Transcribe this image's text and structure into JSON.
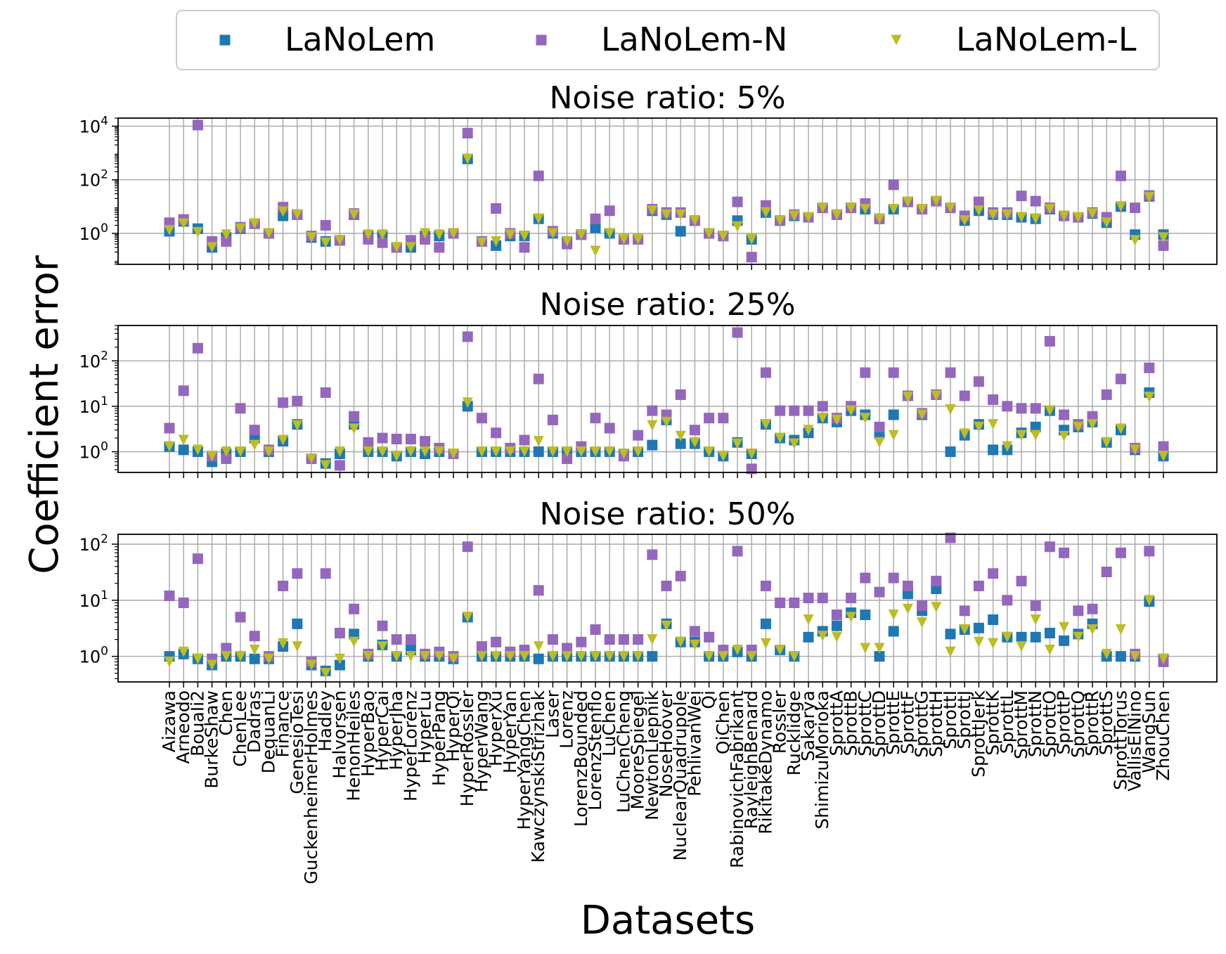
{
  "chart_data": {
    "type": "scatter",
    "xlabel": "Datasets",
    "ylabel": "Coefficient error",
    "legend": {
      "placement": "top-center",
      "entries": [
        "LaNoLem",
        "LaNoLem-N",
        "LaNoLem-L"
      ]
    },
    "grid": true,
    "yscale": "log",
    "series_styles": [
      {
        "name": "LaNoLem",
        "color": "#1f77b4",
        "marker": "square"
      },
      {
        "name": "LaNoLem-N",
        "color": "#9467bd",
        "marker": "square"
      },
      {
        "name": "LaNoLem-L",
        "color": "#bcbd22",
        "marker": "triangle-down"
      }
    ],
    "categories": [
      "Aizawa",
      "Arneodo",
      "BouaIi2",
      "BurkeShaw",
      "Chen",
      "ChenLee",
      "Dadras",
      "DequanLi",
      "Finance",
      "GenesioTesi",
      "GuckenheimerHolmes",
      "Hadley",
      "Halvorsen",
      "HenonHeiles",
      "HyperBao",
      "HyperCai",
      "HyperJha",
      "HyperLorenz",
      "HyperLu",
      "HyperPang",
      "HyperQi",
      "HyperRossler",
      "HyperWang",
      "HyperXu",
      "HyperYan",
      "HyperYangChen",
      "KawczynskiStrizhak",
      "Laser",
      "Lorenz",
      "LorenzBounded",
      "LorenzStenflo",
      "LuChen",
      "LuChenCheng",
      "MooreSpiegel",
      "NewtonLiepnik",
      "NoseHoover",
      "NuclearQuadrupole",
      "PehlivanWei",
      "Qi",
      "QiChen",
      "RabinovichFabrikant",
      "RayleighBenard",
      "RikitakeDynamo",
      "Rossler",
      "Rucklidge",
      "Sakarya",
      "ShimizuMorioka",
      "SprottA",
      "SprottB",
      "SprottC",
      "SprottD",
      "SprottE",
      "SprottF",
      "SprottG",
      "SprottH",
      "SprottI",
      "SprottJ",
      "SprottJerk",
      "SprottK",
      "SprottL",
      "SprottM",
      "SprottN",
      "SprottO",
      "SprottP",
      "SprottQ",
      "SprottR",
      "SprottS",
      "SprottTorus",
      "VallisElNino",
      "WangSun",
      "ZhouChen"
    ],
    "panels": [
      {
        "title": "Noise ratio: 5%",
        "ylim": [
          0.07,
          20000
        ],
        "yticks": [
          1,
          100,
          10000
        ],
        "ytick_labels": [
          [
            "10",
            "0"
          ],
          [
            "10",
            "2"
          ],
          [
            "10",
            "4"
          ]
        ],
        "series": [
          {
            "name": "LaNoLem",
            "values": [
              1.2,
              2.8,
              1.5,
              0.3,
              0.7,
              1.5,
              2.3,
              1.0,
              4.5,
              5,
              0.7,
              0.5,
              0.55,
              5,
              0.8,
              0.8,
              0.3,
              0.3,
              0.8,
              0.8,
              1.0,
              600,
              0.5,
              0.35,
              0.8,
              0.8,
              3.5,
              1.0,
              0.5,
              0.9,
              1.6,
              1.0,
              0.6,
              0.6,
              7,
              5,
              1.2,
              3,
              1.0,
              0.8,
              3,
              0.6,
              6,
              3,
              4.5,
              4,
              9,
              5,
              9,
              8,
              3.5,
              8,
              15,
              8,
              16,
              9,
              3,
              7,
              5,
              5,
              4,
              3.5,
              8,
              4.5,
              4,
              5.5,
              2.5,
              10,
              0.9,
              24,
              0.9
            ]
          },
          {
            "name": "LaNoLem-N",
            "values": [
              2.5,
              3.3,
              11000,
              0.5,
              0.5,
              1.7,
              2.3,
              1.0,
              9.5,
              5,
              0.8,
              2.0,
              0.55,
              5.5,
              0.6,
              0.45,
              0.3,
              0.55,
              0.6,
              0.3,
              1.0,
              5500,
              0.5,
              8.5,
              1.0,
              0.3,
              140,
              1.2,
              0.4,
              0.9,
              3.5,
              7,
              0.6,
              0.6,
              8,
              6,
              6,
              3,
              1.0,
              0.8,
              15,
              0.13,
              11,
              3,
              5,
              4,
              9,
              5,
              9,
              13,
              3.5,
              65,
              15,
              8,
              16,
              9,
              4.5,
              15,
              6,
              6,
              25,
              16,
              9,
              4.5,
              4,
              6,
              4,
              140,
              9,
              26,
              0.35
            ]
          },
          {
            "name": "LaNoLem-L",
            "values": [
              1.3,
              2.3,
              1.1,
              0.3,
              0.9,
              1.5,
              2.3,
              1.0,
              6.5,
              5,
              0.7,
              0.45,
              0.55,
              5,
              0.9,
              0.9,
              0.3,
              0.3,
              1.0,
              0.9,
              1.0,
              600,
              0.45,
              0.5,
              0.9,
              0.8,
              3.5,
              1.0,
              0.5,
              0.9,
              0.22,
              1.0,
              0.6,
              0.6,
              7,
              5,
              5,
              3,
              1.0,
              0.8,
              1.8,
              0.6,
              6,
              3,
              4.5,
              4,
              9,
              5,
              9,
              8,
              3.5,
              8,
              15,
              8,
              16,
              9,
              3,
              7,
              5,
              5,
              4,
              3.5,
              8,
              4.5,
              4,
              5.5,
              2.5,
              10,
              0.55,
              22,
              0.7
            ]
          }
        ]
      },
      {
        "title": "Noise ratio: 25%",
        "ylim": [
          0.35,
          600
        ],
        "yticks": [
          1,
          10,
          100
        ],
        "ytick_labels": [
          [
            "10",
            "0"
          ],
          [
            "10",
            "1"
          ],
          [
            "10",
            "2"
          ]
        ],
        "series": [
          {
            "name": "LaNoLem",
            "values": [
              1.3,
              1.1,
              1.0,
              0.6,
              0.9,
              1.0,
              2.0,
              1.0,
              1.7,
              4,
              0.7,
              0.55,
              0.9,
              4,
              1.0,
              1.0,
              0.8,
              1.0,
              0.9,
              1.0,
              0.9,
              10,
              1.0,
              1.0,
              1.0,
              1.0,
              1.0,
              1.0,
              1.0,
              1.0,
              1.0,
              1.0,
              0.9,
              1.0,
              1.4,
              5,
              1.5,
              1.5,
              1.0,
              0.8,
              1.6,
              0.9,
              4,
              2.0,
              1.8,
              2.6,
              5.5,
              4.5,
              8,
              6.5,
              2.5,
              6.5,
              17,
              6.5,
              18,
              1.0,
              2.3,
              4,
              1.1,
              1.1,
              2.6,
              3.5,
              8,
              3,
              3.5,
              4.5,
              1.6,
              3,
              1.1,
              20,
              0.8
            ]
          },
          {
            "name": "LaNoLem-N",
            "values": [
              3.3,
              22,
              190,
              0.8,
              0.7,
              9,
              3,
              1.1,
              12,
              13,
              0.7,
              20,
              0.5,
              6,
              1.6,
              2.0,
              1.9,
              1.9,
              1.7,
              1.2,
              0.9,
              340,
              5.5,
              2.6,
              1.2,
              1.8,
              40,
              5,
              0.7,
              1.3,
              5.5,
              3.3,
              0.8,
              2.3,
              8,
              6.5,
              18,
              3,
              5.5,
              5.5,
              420,
              0.42,
              55,
              8,
              8,
              8,
              10,
              5.5,
              10,
              55,
              3.5,
              55,
              17,
              7,
              18,
              55,
              17,
              35,
              14,
              10,
              9,
              9,
              270,
              6.5,
              4,
              6,
              18,
              40,
              1.2,
              70,
              1.3
            ]
          },
          {
            "name": "LaNoLem-L",
            "values": [
              1.3,
              1.8,
              1.1,
              0.8,
              1.0,
              1.0,
              1.4,
              1.0,
              1.8,
              3.8,
              0.7,
              0.5,
              1.0,
              3.2,
              1.0,
              1.0,
              0.8,
              1.0,
              1.0,
              1.0,
              0.9,
              12,
              1.0,
              1.0,
              1.0,
              1.0,
              1.7,
              1.0,
              1.0,
              1.0,
              1.0,
              1.0,
              0.9,
              1.0,
              3.8,
              4.5,
              2.2,
              1.6,
              1.0,
              0.8,
              1.5,
              0.9,
              4,
              2.0,
              1.5,
              3,
              5.5,
              5,
              8,
              5.5,
              1.6,
              2.3,
              16,
              6.5,
              17,
              8.5,
              2.5,
              3.5,
              4,
              1.3,
              2.3,
              2.3,
              8,
              2.2,
              3.5,
              4,
              1.6,
              3.2,
              1.1,
              16,
              0.8
            ]
          }
        ]
      },
      {
        "title": "Noise ratio: 50%",
        "ylim": [
          0.35,
          150
        ],
        "yticks": [
          1,
          10,
          100
        ],
        "ytick_labels": [
          [
            "10",
            "0"
          ],
          [
            "10",
            "1"
          ],
          [
            "10",
            "2"
          ]
        ],
        "series": [
          {
            "name": "LaNoLem",
            "values": [
              1.0,
              1.1,
              0.9,
              0.7,
              1.0,
              1.0,
              0.9,
              0.9,
              1.5,
              3.8,
              0.7,
              0.55,
              0.7,
              2.5,
              1.0,
              1.6,
              1.0,
              1.3,
              1.0,
              1.0,
              0.9,
              5,
              1.0,
              1.0,
              1.0,
              1.0,
              0.9,
              1.0,
              1.0,
              1.0,
              1.0,
              1.0,
              1.0,
              1.0,
              1.0,
              3.8,
              1.8,
              1.8,
              1.0,
              1.0,
              1.2,
              1.0,
              3.8,
              1.3,
              1.0,
              2.2,
              2.8,
              3.5,
              6,
              5.5,
              1.0,
              2.8,
              13,
              6.5,
              16,
              2.5,
              3,
              3.2,
              4.5,
              2.2,
              2.2,
              2.2,
              2.6,
              1.9,
              2.5,
              3.8,
              1.0,
              1.0,
              1.0,
              9.5,
              0.9
            ]
          },
          {
            "name": "LaNoLem-N",
            "values": [
              12,
              9,
              55,
              0.9,
              1.4,
              5,
              2.3,
              1.0,
              18,
              30,
              0.8,
              30,
              2.6,
              7,
              1.1,
              3.5,
              2.0,
              2.0,
              1.1,
              1.2,
              1.0,
              90,
              1.5,
              1.8,
              1.2,
              1.3,
              15,
              2.0,
              1.4,
              1.8,
              3,
              2,
              2.0,
              2.0,
              65,
              18,
              27,
              2.8,
              2.2,
              1.3,
              75,
              1.3,
              18,
              9,
              9,
              11,
              11,
              5.5,
              11,
              25,
              14,
              25,
              18,
              8,
              22,
              130,
              6.5,
              18,
              30,
              10,
              22,
              8,
              90,
              70,
              6.5,
              7,
              32,
              70,
              1.1,
              75,
              0.8
            ]
          },
          {
            "name": "LaNoLem-L",
            "values": [
              0.8,
              1.2,
              0.9,
              0.7,
              1.0,
              1.0,
              1.3,
              0.9,
              1.7,
              1.5,
              0.7,
              0.5,
              0.9,
              1.8,
              1.0,
              1.5,
              1.0,
              1.0,
              1.0,
              1.0,
              0.9,
              5,
              1.0,
              1.0,
              1.0,
              1.0,
              1.5,
              1.0,
              1.0,
              1.0,
              1.0,
              1.0,
              1.0,
              1.0,
              2.0,
              3.5,
              1.8,
              1.6,
              1.0,
              1.0,
              1.3,
              1.0,
              1.7,
              1.3,
              1.0,
              4.5,
              2.3,
              2.2,
              5,
              1.4,
              1.4,
              5.5,
              7,
              4,
              7.5,
              1.2,
              3,
              1.8,
              1.7,
              2.2,
              1.5,
              4.5,
              1.3,
              3.3,
              2.2,
              3,
              1.1,
              3,
              1.0,
              10,
              0.9
            ]
          }
        ]
      }
    ]
  }
}
